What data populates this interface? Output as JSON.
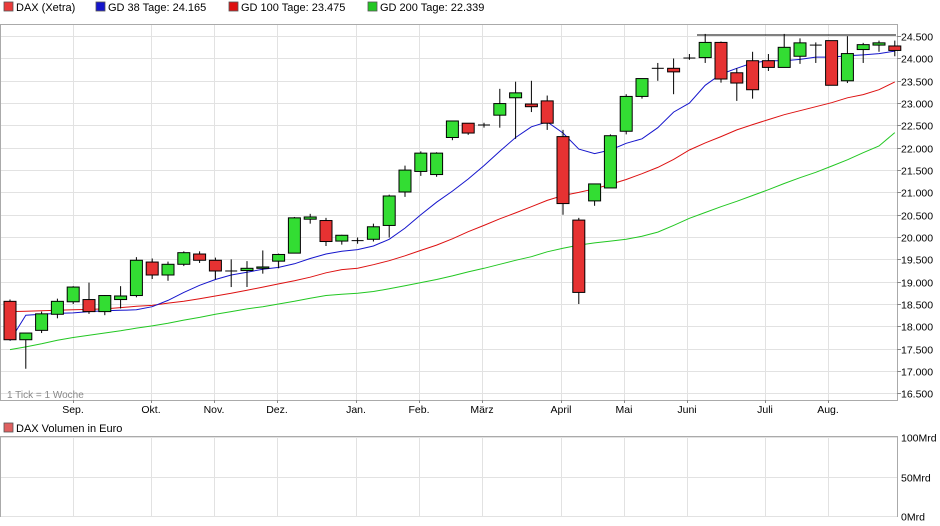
{
  "chart_data": [
    {
      "type": "candlestick",
      "series_name": "DAX (Xetra)",
      "legend": [
        {
          "label": "DAX (Xetra)",
          "color": "#ea3b3b"
        },
        {
          "label": "GD 38 Tage: 24.165",
          "color": "#1515cc"
        },
        {
          "label": "GD 100 Tage: 23.475",
          "color": "#dd1111"
        },
        {
          "label": "GD 200 Tage: 22.339",
          "color": "#22c722"
        }
      ],
      "tick_note": "1 Tick = 1 Woche",
      "x_labels": [
        "Sep.",
        "Okt.",
        "Nov.",
        "Dez.",
        "Jan.",
        "Feb.",
        "März",
        "April",
        "Mai",
        "Juni",
        "Juli",
        "Aug."
      ],
      "y_ticks": [
        "24.500",
        "24.000",
        "23.500",
        "23.000",
        "22.500",
        "22.000",
        "21.500",
        "21.000",
        "20.500",
        "20.000",
        "19.500",
        "19.000",
        "18.500",
        "18.000",
        "17.500",
        "17.000",
        "16.500"
      ],
      "ylim": [
        16350,
        24750
      ],
      "up_color": "#33dd33",
      "down_color": "#e63232",
      "candles": [
        [
          18560,
          18600,
          17680,
          17700
        ],
        [
          17700,
          17850,
          17050,
          17850
        ],
        [
          17910,
          18330,
          17850,
          18280
        ],
        [
          18270,
          18620,
          18180,
          18560
        ],
        [
          18550,
          18900,
          18500,
          18880
        ],
        [
          18600,
          18980,
          18280,
          18330
        ],
        [
          18330,
          18700,
          18250,
          18690
        ],
        [
          18600,
          18900,
          18400,
          18680
        ],
        [
          18690,
          19550,
          18650,
          19480
        ],
        [
          19440,
          19520,
          19060,
          19150
        ],
        [
          19150,
          19450,
          19020,
          19390
        ],
        [
          19390,
          19680,
          19350,
          19650
        ],
        [
          19620,
          19680,
          19420,
          19480
        ],
        [
          19480,
          19540,
          19050,
          19240
        ],
        [
          19230,
          19500,
          18880,
          19240
        ],
        [
          19250,
          19460,
          18880,
          19300
        ],
        [
          19300,
          19700,
          19180,
          19330
        ],
        [
          19460,
          19630,
          19300,
          19610
        ],
        [
          19640,
          20450,
          19640,
          20430
        ],
        [
          20400,
          20520,
          20300,
          20450
        ],
        [
          20370,
          20430,
          19800,
          19900
        ],
        [
          19910,
          20050,
          19830,
          20040
        ],
        [
          19920,
          19990,
          19850,
          19900
        ],
        [
          19950,
          20300,
          19900,
          20230
        ],
        [
          20260,
          20950,
          19990,
          20920
        ],
        [
          21010,
          21600,
          20900,
          21500
        ],
        [
          21470,
          21920,
          21370,
          21880
        ],
        [
          21400,
          21900,
          21350,
          21880
        ],
        [
          22230,
          22600,
          22170,
          22600
        ],
        [
          22550,
          22550,
          22290,
          22330
        ],
        [
          22510,
          22560,
          22450,
          22510
        ],
        [
          22730,
          23320,
          22450,
          22990
        ],
        [
          23120,
          23480,
          22200,
          23230
        ],
        [
          22980,
          23500,
          22800,
          22920
        ],
        [
          23050,
          23170,
          22400,
          22550
        ],
        [
          22250,
          22400,
          20500,
          20750
        ],
        [
          20380,
          20430,
          18500,
          18760
        ],
        [
          20810,
          21190,
          20700,
          21190
        ],
        [
          21100,
          22300,
          21100,
          22270
        ],
        [
          22370,
          23200,
          22300,
          23150
        ],
        [
          23150,
          23500,
          23100,
          23550
        ],
        [
          23780,
          23900,
          23500,
          23780
        ],
        [
          23780,
          24000,
          23200,
          23700
        ],
        [
          23990,
          24100,
          23970,
          24010
        ],
        [
          24020,
          24550,
          23900,
          24360
        ],
        [
          24360,
          24380,
          23460,
          23540
        ],
        [
          23680,
          23780,
          23050,
          23450
        ],
        [
          23950,
          24150,
          23100,
          23300
        ],
        [
          23950,
          24100,
          23720,
          23800
        ],
        [
          23800,
          24550,
          23800,
          24250
        ],
        [
          24050,
          24450,
          23880,
          24350
        ],
        [
          24300,
          24360,
          23900,
          24300
        ],
        [
          24400,
          24400,
          23400,
          23400
        ],
        [
          23500,
          24500,
          23450,
          24110
        ],
        [
          24200,
          24350,
          23900,
          24310
        ],
        [
          24300,
          24400,
          24150,
          24350
        ],
        [
          24280,
          24400,
          24050,
          24180
        ]
      ],
      "gd38": [
        17680,
        18250,
        18270,
        18290,
        18300,
        18330,
        18350,
        18360,
        18370,
        18440,
        18580,
        18760,
        18920,
        19050,
        19150,
        19210,
        19280,
        19320,
        19400,
        19520,
        19620,
        19680,
        19720,
        19800,
        19950,
        20200,
        20500,
        20780,
        21030,
        21300,
        21600,
        21920,
        22230,
        22470,
        22580,
        22330,
        21970,
        21870,
        21950,
        22100,
        22200,
        22450,
        22800,
        23000,
        23400,
        23650,
        23780,
        23900,
        23950,
        23950,
        23980,
        24030,
        24030,
        24060,
        24080,
        24110,
        24165
      ],
      "gd100": [
        18330,
        18340,
        18350,
        18360,
        18370,
        18380,
        18390,
        18420,
        18450,
        18470,
        18520,
        18560,
        18620,
        18680,
        18740,
        18810,
        18880,
        18950,
        19020,
        19100,
        19200,
        19270,
        19300,
        19380,
        19470,
        19580,
        19700,
        19820,
        19960,
        20120,
        20260,
        20410,
        20540,
        20680,
        20820,
        20930,
        21000,
        21080,
        21180,
        21290,
        21420,
        21560,
        21740,
        21950,
        22110,
        22250,
        22400,
        22520,
        22630,
        22740,
        22830,
        22920,
        23010,
        23120,
        23190,
        23300,
        23475
      ],
      "gd200": [
        17480,
        17540,
        17610,
        17690,
        17750,
        17800,
        17850,
        17900,
        17960,
        18010,
        18070,
        18140,
        18200,
        18270,
        18330,
        18390,
        18440,
        18500,
        18560,
        18630,
        18690,
        18720,
        18740,
        18780,
        18840,
        18910,
        18980,
        19050,
        19130,
        19220,
        19300,
        19390,
        19480,
        19560,
        19670,
        19750,
        19820,
        19870,
        19910,
        19950,
        20020,
        20110,
        20260,
        20420,
        20550,
        20680,
        20800,
        20930,
        21060,
        21200,
        21330,
        21450,
        21590,
        21730,
        21890,
        22040,
        22339
      ]
    },
    {
      "type": "bar",
      "title": "DAX Volumen in Euro",
      "legend_color": "#e06060",
      "y_ticks": [
        "100Mrd",
        "50Mrd",
        "0Mrd"
      ],
      "ylim": [
        0,
        100
      ],
      "values": []
    }
  ]
}
